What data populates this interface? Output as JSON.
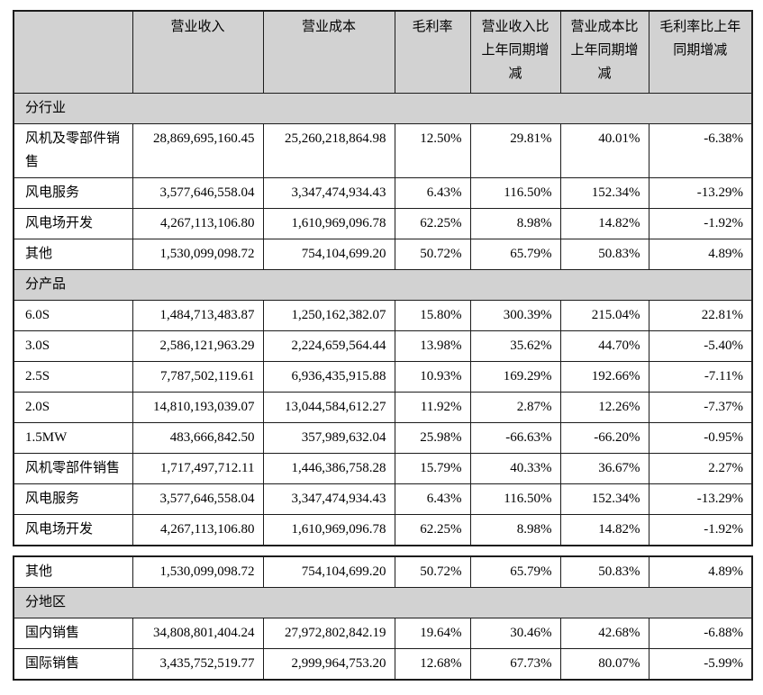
{
  "colors": {
    "section_background": "#d2d2d2",
    "header_background": "#d2d2d2",
    "border": "#1c1c1c",
    "text": "#000000",
    "page_background": "#ffffff"
  },
  "header": {
    "columns": [
      "",
      "营业收入",
      "营业成本",
      "毛利率",
      "营业收入比\n上年同期增\n减",
      "营业成本比\n上年同期增\n减",
      "毛利率比上年\n同期增减"
    ]
  },
  "tables": [
    {
      "has_header": true,
      "rows": [
        {
          "type": "section",
          "label": "分行业"
        },
        {
          "type": "data",
          "label": "风机及零部件销售",
          "values": [
            "28,869,695,160.45",
            "25,260,218,864.98",
            "12.50%",
            "29.81%",
            "40.01%",
            "-6.38%"
          ]
        },
        {
          "type": "data",
          "label": "风电服务",
          "values": [
            "3,577,646,558.04",
            "3,347,474,934.43",
            "6.43%",
            "116.50%",
            "152.34%",
            "-13.29%"
          ]
        },
        {
          "type": "data",
          "label": "风电场开发",
          "values": [
            "4,267,113,106.80",
            "1,610,969,096.78",
            "62.25%",
            "8.98%",
            "14.82%",
            "-1.92%"
          ]
        },
        {
          "type": "data",
          "label": "其他",
          "values": [
            "1,530,099,098.72",
            "754,104,699.20",
            "50.72%",
            "65.79%",
            "50.83%",
            "4.89%"
          ]
        },
        {
          "type": "section",
          "label": "分产品"
        },
        {
          "type": "data",
          "label": "6.0S",
          "values": [
            "1,484,713,483.87",
            "1,250,162,382.07",
            "15.80%",
            "300.39%",
            "215.04%",
            "22.81%"
          ]
        },
        {
          "type": "data",
          "label": "3.0S",
          "values": [
            "2,586,121,963.29",
            "2,224,659,564.44",
            "13.98%",
            "35.62%",
            "44.70%",
            "-5.40%"
          ]
        },
        {
          "type": "data",
          "label": "2.5S",
          "values": [
            "7,787,502,119.61",
            "6,936,435,915.88",
            "10.93%",
            "169.29%",
            "192.66%",
            "-7.11%"
          ]
        },
        {
          "type": "data",
          "label": "2.0S",
          "values": [
            "14,810,193,039.07",
            "13,044,584,612.27",
            "11.92%",
            "2.87%",
            "12.26%",
            "-7.37%"
          ]
        },
        {
          "type": "data",
          "label": "1.5MW",
          "values": [
            "483,666,842.50",
            "357,989,632.04",
            "25.98%",
            "-66.63%",
            "-66.20%",
            "-0.95%"
          ]
        },
        {
          "type": "data",
          "label": "风机零部件销售",
          "values": [
            "1,717,497,712.11",
            "1,446,386,758.28",
            "15.79%",
            "40.33%",
            "36.67%",
            "2.27%"
          ]
        },
        {
          "type": "data",
          "label": "风电服务",
          "values": [
            "3,577,646,558.04",
            "3,347,474,934.43",
            "6.43%",
            "116.50%",
            "152.34%",
            "-13.29%"
          ]
        },
        {
          "type": "data",
          "label": "风电场开发",
          "values": [
            "4,267,113,106.80",
            "1,610,969,096.78",
            "62.25%",
            "8.98%",
            "14.82%",
            "-1.92%"
          ]
        }
      ]
    },
    {
      "has_header": false,
      "rows": [
        {
          "type": "data",
          "label": "其他",
          "values": [
            "1,530,099,098.72",
            "754,104,699.20",
            "50.72%",
            "65.79%",
            "50.83%",
            "4.89%"
          ]
        },
        {
          "type": "section",
          "label": "分地区"
        },
        {
          "type": "data",
          "label": "国内销售",
          "values": [
            "34,808,801,404.24",
            "27,972,802,842.19",
            "19.64%",
            "30.46%",
            "42.68%",
            "-6.88%"
          ]
        },
        {
          "type": "data",
          "label": "国际销售",
          "values": [
            "3,435,752,519.77",
            "2,999,964,753.20",
            "12.68%",
            "67.73%",
            "80.07%",
            "-5.99%"
          ]
        }
      ]
    }
  ]
}
